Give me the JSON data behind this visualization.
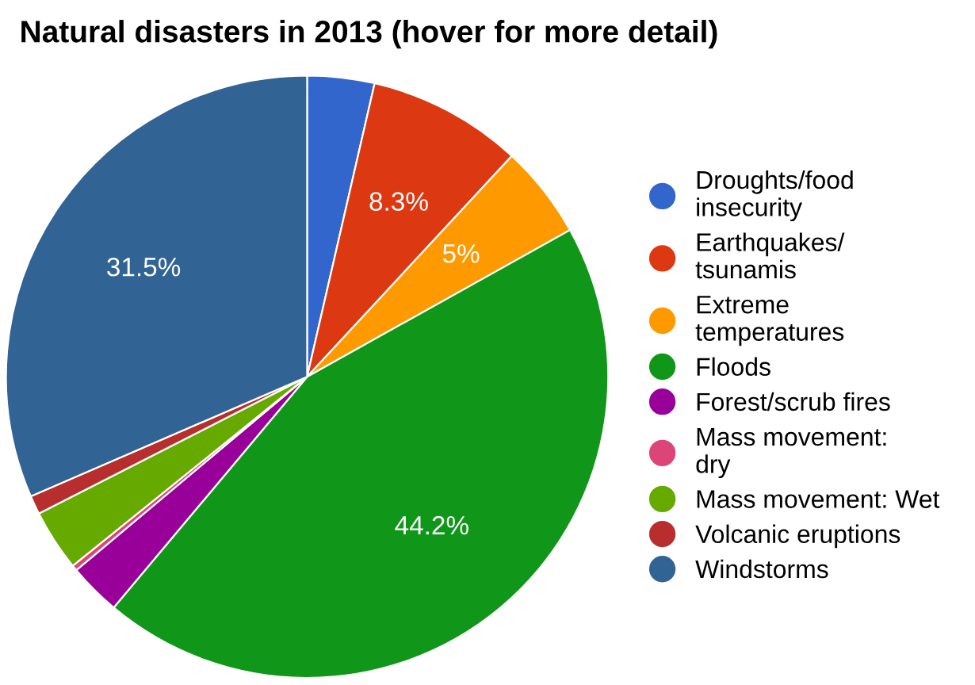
{
  "chart_data": {
    "type": "pie",
    "title": "Natural disasters in 2013 (hover for more detail)",
    "categories": [
      "Droughts/food\ninsecurity",
      "Earthquakes/\ntsunamis",
      "Extreme\ntemperatures",
      "Floods",
      "Forest/scrub fires",
      "Mass movement:\ndry",
      "Mass movement: Wet",
      "Volcanic eruptions",
      "Windstorms"
    ],
    "values": [
      3.6,
      8.3,
      5,
      44.2,
      2.8,
      0.3,
      3.3,
      1.0,
      31.5
    ],
    "value_labels": [
      null,
      "8.3%",
      "5%",
      "44.2%",
      null,
      null,
      null,
      null,
      "31.5%"
    ],
    "colors": [
      "#3366cc",
      "#dc3912",
      "#ff9900",
      "#109618",
      "#990099",
      "#dd4477",
      "#66aa00",
      "#b82e2e",
      "#316395"
    ],
    "legend": "right"
  }
}
